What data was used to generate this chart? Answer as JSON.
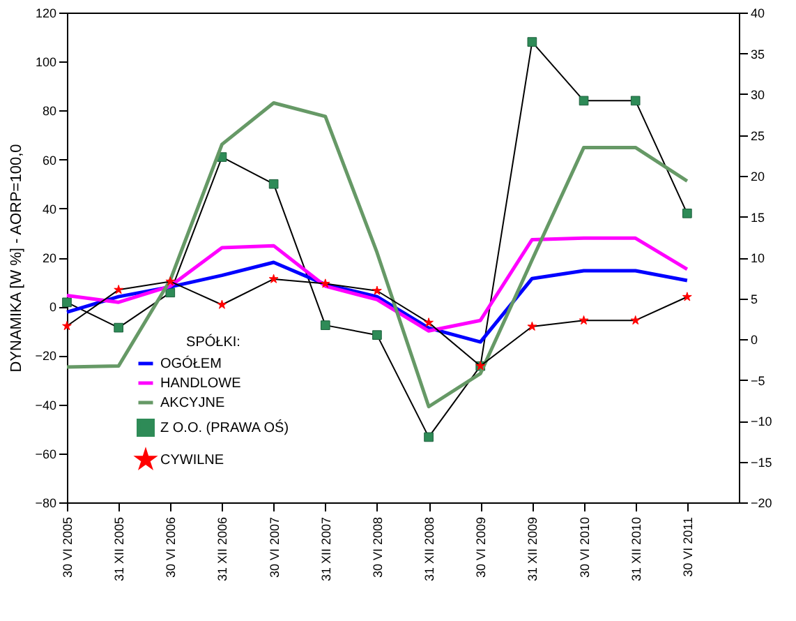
{
  "chart_data": {
    "type": "line",
    "ylabel": "DYNAMIKA [W %] - AORP=100,0",
    "legend_title": "SPÓŁKI:",
    "legend": "bottom left",
    "grid": false,
    "categories": [
      "30 VI 2005",
      "31 XII 2005",
      "30 VI 2006",
      "31 XII 2006",
      "30 VI 2007",
      "31 XII 2007",
      "30 VI 2008",
      "31 XII 2008",
      "30 VI 2009",
      "31 XII 2009",
      "30 VI 2010",
      "31 XII 2010",
      "30 VI 2011"
    ],
    "ylim": [
      -80,
      120
    ],
    "yticks": [
      -80,
      -60,
      -40,
      -20,
      0,
      20,
      40,
      60,
      80,
      100,
      120
    ],
    "y2lim": [
      -20,
      40
    ],
    "y2ticks": [
      -20,
      -15,
      -10,
      -5,
      0,
      5,
      10,
      15,
      20,
      25,
      30,
      35,
      40
    ],
    "series": [
      {
        "name": "OGÓŁEM",
        "color": "#0000ff",
        "marker": "none",
        "values": [
          -2.3,
          4,
          8,
          12.7,
          18,
          9,
          4,
          -8.8,
          -14.5,
          11.4,
          14.6,
          14.6,
          10.6
        ]
      },
      {
        "name": "HANDLOWE",
        "color": "#ff00ff",
        "marker": "none",
        "values": [
          4.5,
          1.7,
          8.3,
          24,
          24.8,
          8.3,
          2.8,
          -10,
          -5.7,
          27.3,
          27.9,
          27.9,
          15.2
        ]
      },
      {
        "name": "AKCYJNE",
        "color": "#669966",
        "marker": "none",
        "values": [
          -24.7,
          -24.3,
          10.8,
          66.2,
          83.1,
          77.6,
          22,
          -40.9,
          -27.4,
          19,
          64.9,
          64.9,
          51.2
        ]
      },
      {
        "name": "Z O.O. (PRAWA OŚ)",
        "color": "#2e8b57",
        "marker": "square",
        "axis": "y2",
        "values": [
          4.5,
          1.4,
          5.7,
          22.3,
          19.0,
          1.7,
          0.5,
          -12,
          -3.3,
          36.4,
          29.2,
          29.2,
          15.4
        ]
      },
      {
        "name": "CYWILNE",
        "color": "#ff0000",
        "marker": "star",
        "values": [
          -8,
          6.8,
          10.2,
          0.7,
          11.2,
          9.3,
          6.4,
          -6.6,
          -24.3,
          -8.2,
          -5.7,
          -5.7,
          3.9
        ]
      }
    ]
  }
}
